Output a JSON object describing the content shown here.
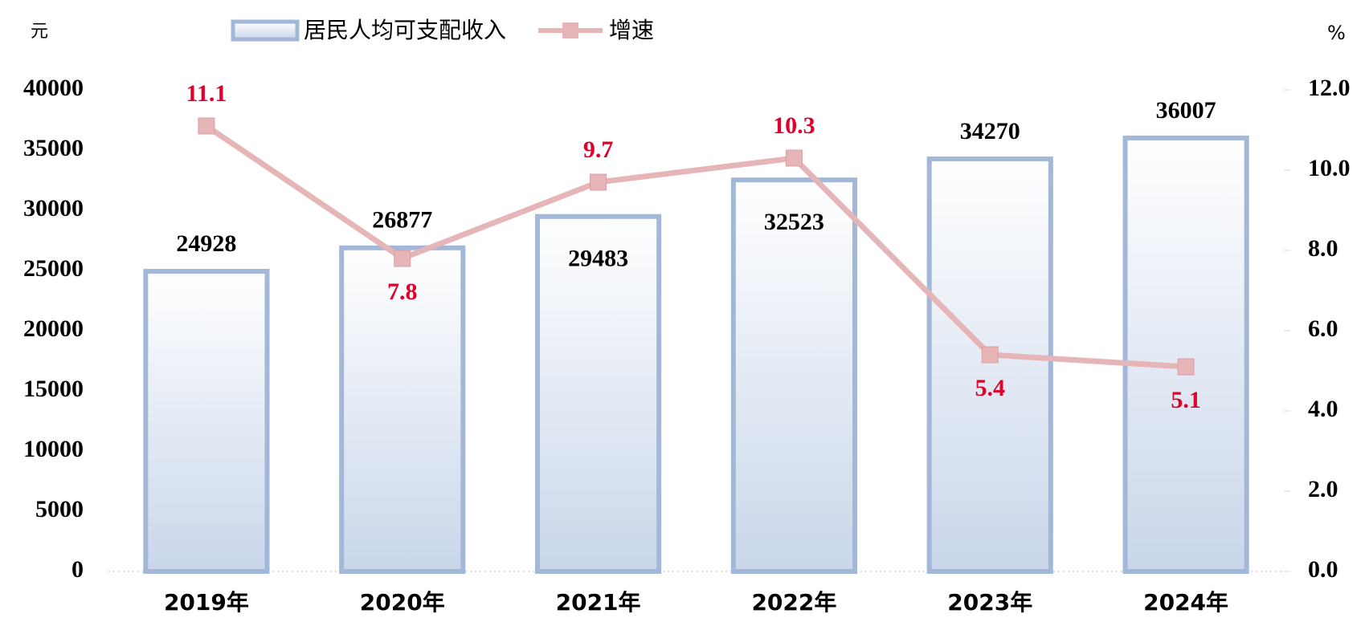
{
  "chart_data": {
    "type": "bar",
    "categories": [
      "2019年",
      "2020年",
      "2021年",
      "2022年",
      "2023年",
      "2024年"
    ],
    "series": [
      {
        "name": "居民人均可支配收入",
        "type": "bar",
        "color": "#a3b8d8",
        "values": [
          24928,
          26877,
          29483,
          32523,
          34270,
          36007
        ]
      },
      {
        "name": "增速",
        "type": "line",
        "axis": "y2",
        "color": "#e6b5b8",
        "label_color": "#e0002a",
        "values": [
          11.1,
          7.8,
          9.7,
          10.3,
          5.4,
          5.1
        ]
      }
    ],
    "y_label": "元",
    "y2_label": "%",
    "ylim": [
      0,
      40000
    ],
    "yticks": [
      0,
      5000,
      10000,
      15000,
      20000,
      25000,
      30000,
      35000,
      40000
    ],
    "y2lim": [
      0,
      12
    ],
    "y2ticks": [
      {
        "value": 0,
        "label": "0.0"
      },
      {
        "value": 2,
        "label": "2.0"
      },
      {
        "value": 4,
        "label": "4.0"
      },
      {
        "value": 6,
        "label": "6.0"
      },
      {
        "value": 8,
        "label": "8.0"
      },
      {
        "value": 10,
        "label": "10.0"
      },
      {
        "value": 12,
        "label": "12.0"
      }
    ],
    "grid": false,
    "legend": "top"
  }
}
